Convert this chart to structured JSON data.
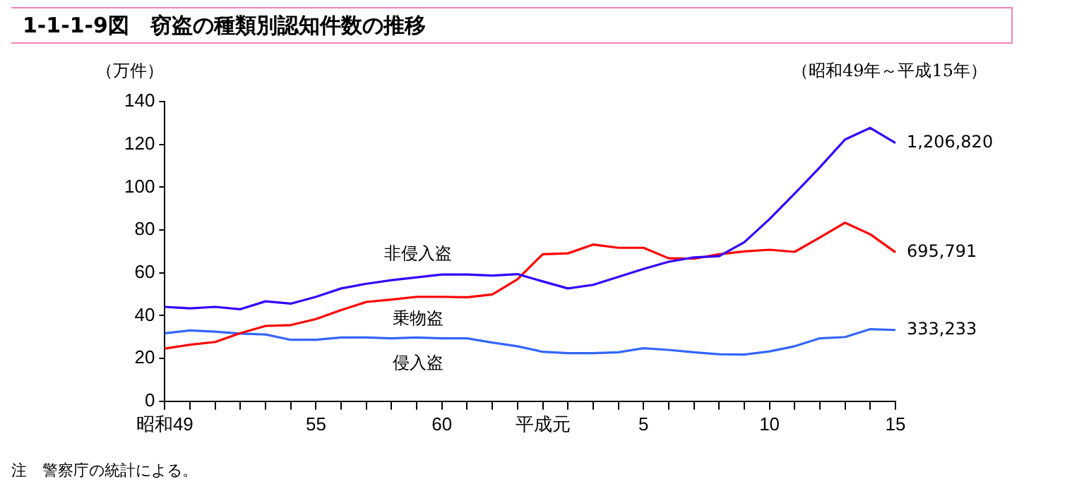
{
  "chart_data": {
    "type": "line",
    "title": "1-1-1-9図　窃盗の種類別認知件数の推移",
    "subtitle": "（昭和49年～平成15年）",
    "ylabel": "（万件）",
    "annotations": [
      "注　警察庁の統計による。",
      {
        "text": "1,206,820",
        "x": "15",
        "y": 120.7
      },
      {
        "text": "695,791",
        "x": "15",
        "y": 69.6
      },
      {
        "text": "333,233",
        "x": "15",
        "y": 33.3
      }
    ],
    "categories": [
      "昭和49",
      null,
      null,
      null,
      null,
      null,
      "55",
      null,
      null,
      null,
      null,
      "60",
      null,
      null,
      null,
      "平成元",
      null,
      null,
      null,
      "5",
      null,
      null,
      null,
      null,
      "10",
      null,
      null,
      null,
      null,
      "15"
    ],
    "series": [
      {
        "name": "非侵入盗",
        "color": "#3300ff",
        "values": [
          44.1,
          43.4,
          44.1,
          43,
          46.7,
          45.6,
          48.8,
          52.7,
          54.9,
          56.6,
          57.9,
          59.2,
          59.2,
          58.7,
          59.4,
          56,
          52.7,
          54.4,
          58.1,
          61.8,
          65.2,
          67.2,
          67.8,
          74.3,
          85.1,
          97,
          109.3,
          122.3,
          127.7,
          120.7
        ]
      },
      {
        "name": "乗物盗",
        "color": "#ff0000",
        "values": [
          24.6,
          26.4,
          27.7,
          31.8,
          35.2,
          35.6,
          38.4,
          42.6,
          46.4,
          47.5,
          48.8,
          48.8,
          48.6,
          49.9,
          57,
          68.7,
          69.1,
          73.2,
          71.7,
          71.7,
          66.8,
          66.6,
          68.7,
          70,
          70.8,
          69.8,
          76.5,
          83.4,
          78,
          69.6
        ]
      },
      {
        "name": "侵入盗",
        "color": "#3366ff",
        "values": [
          31.8,
          33.1,
          32.5,
          31.6,
          31.2,
          28.7,
          28.7,
          29.8,
          29.8,
          29.4,
          29.8,
          29.4,
          29.4,
          27.4,
          25.7,
          23.1,
          22.5,
          22.5,
          22.9,
          24.8,
          24,
          22.9,
          22,
          21.8,
          23.3,
          25.7,
          29.4,
          30,
          33.7,
          33.3
        ]
      }
    ],
    "ylim": [
      0,
      140
    ],
    "yticks": [
      0,
      20,
      40,
      60,
      80,
      100,
      120,
      140
    ],
    "grid": false,
    "legend": false,
    "marker": "none",
    "line_style": "solid"
  }
}
